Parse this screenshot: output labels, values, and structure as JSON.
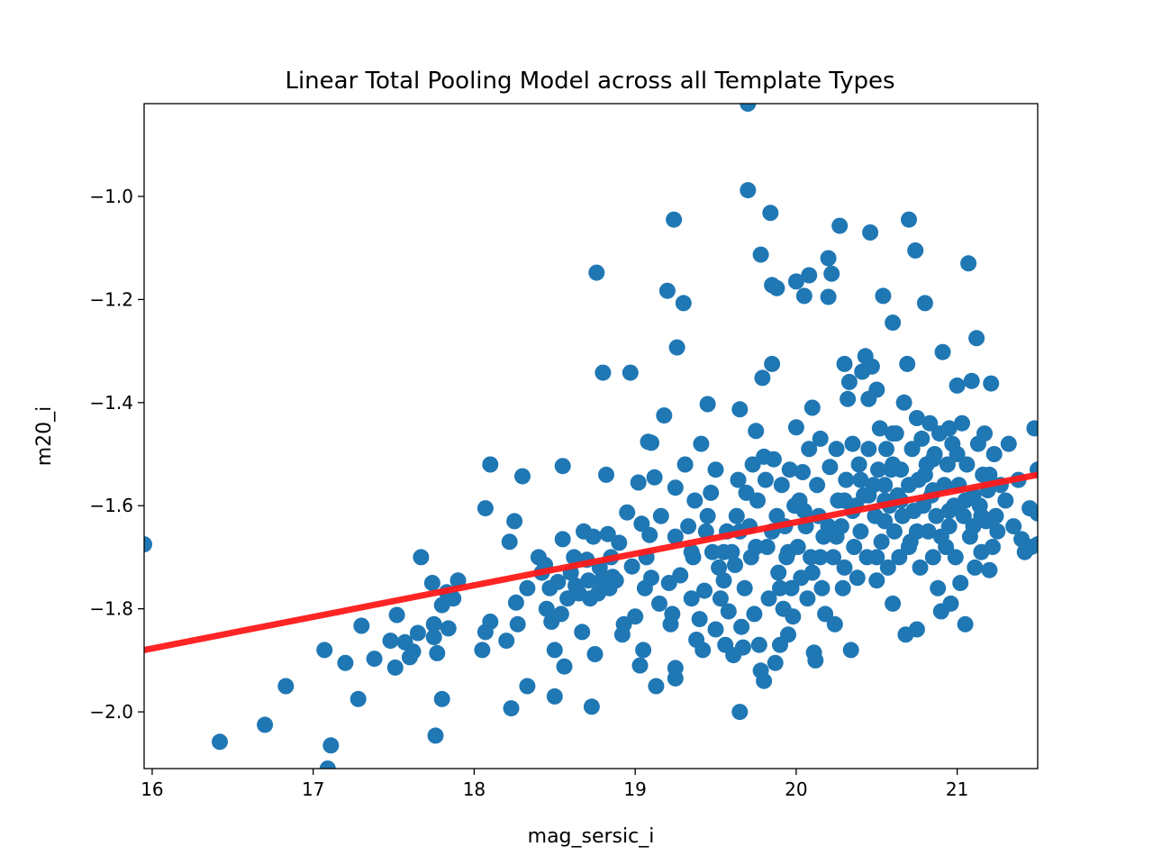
{
  "chart_data": {
    "type": "scatter",
    "title": "Linear Total Pooling Model across all Template Types",
    "xlabel": "mag_sersic_i",
    "ylabel": "m20_i",
    "xlim": [
      15.95,
      21.5
    ],
    "ylim": [
      -2.11,
      -0.82
    ],
    "xticks": [
      16,
      17,
      18,
      19,
      20,
      21
    ],
    "yticks": [
      -2.0,
      -1.8,
      -1.6,
      -1.4,
      -1.2,
      -1.0
    ],
    "xtick_labels": [
      "16",
      "17",
      "18",
      "19",
      "20",
      "21"
    ],
    "ytick_labels": [
      "−2.0",
      "−1.8",
      "−1.6",
      "−1.4",
      "−1.2",
      "−1.0"
    ],
    "grid": false,
    "point_color": "#1f77b4",
    "fit_line": {
      "color": "#ff1a1a",
      "x": [
        15.95,
        21.5
      ],
      "y": [
        -1.88,
        -1.54
      ]
    },
    "points": [
      [
        15.95,
        -1.675
      ],
      [
        16.42,
        -2.058
      ],
      [
        16.7,
        -2.025
      ],
      [
        16.83,
        -1.95
      ],
      [
        17.07,
        -1.88
      ],
      [
        17.09,
        -2.11
      ],
      [
        17.11,
        -2.065
      ],
      [
        17.2,
        -1.905
      ],
      [
        17.28,
        -1.975
      ],
      [
        17.3,
        -1.833
      ],
      [
        17.38,
        -1.897
      ],
      [
        17.48,
        -1.862
      ],
      [
        17.52,
        -1.812
      ],
      [
        17.51,
        -1.914
      ],
      [
        17.57,
        -1.865
      ],
      [
        17.6,
        -1.894
      ],
      [
        17.62,
        -1.883
      ],
      [
        17.65,
        -1.847
      ],
      [
        17.67,
        -1.7
      ],
      [
        17.74,
        -1.75
      ],
      [
        17.75,
        -1.83
      ],
      [
        17.76,
        -2.046
      ],
      [
        17.77,
        -1.886
      ],
      [
        17.8,
        -1.975
      ],
      [
        17.83,
        -1.768
      ],
      [
        17.84,
        -1.838
      ],
      [
        17.87,
        -1.78
      ],
      [
        17.9,
        -1.745
      ],
      [
        17.75,
        -1.855
      ],
      [
        17.8,
        -1.793
      ],
      [
        18.05,
        -1.88
      ],
      [
        18.07,
        -1.605
      ],
      [
        18.1,
        -1.52
      ],
      [
        18.1,
        -1.825
      ],
      [
        18.07,
        -1.845
      ],
      [
        18.2,
        -1.862
      ],
      [
        18.22,
        -1.67
      ],
      [
        18.23,
        -1.993
      ],
      [
        18.25,
        -1.63
      ],
      [
        18.26,
        -1.788
      ],
      [
        18.27,
        -1.83
      ],
      [
        18.3,
        -1.543
      ],
      [
        18.33,
        -1.95
      ],
      [
        18.33,
        -1.76
      ],
      [
        18.4,
        -1.7
      ],
      [
        18.42,
        -1.73
      ],
      [
        18.44,
        -1.715
      ],
      [
        18.45,
        -1.8
      ],
      [
        18.47,
        -1.76
      ],
      [
        18.48,
        -1.825
      ],
      [
        18.5,
        -1.88
      ],
      [
        18.5,
        -1.97
      ],
      [
        18.52,
        -1.748
      ],
      [
        18.54,
        -1.81
      ],
      [
        18.55,
        -1.523
      ],
      [
        18.55,
        -1.665
      ],
      [
        18.56,
        -1.912
      ],
      [
        18.58,
        -1.78
      ],
      [
        18.6,
        -1.73
      ],
      [
        18.62,
        -1.7
      ],
      [
        18.63,
        -1.755
      ],
      [
        18.65,
        -1.77
      ],
      [
        18.67,
        -1.845
      ],
      [
        18.68,
        -1.65
      ],
      [
        18.7,
        -1.705
      ],
      [
        18.71,
        -1.745
      ],
      [
        18.72,
        -1.78
      ],
      [
        18.73,
        -1.99
      ],
      [
        18.74,
        -1.66
      ],
      [
        18.75,
        -1.888
      ],
      [
        18.76,
        -1.148
      ],
      [
        18.77,
        -1.77
      ],
      [
        18.78,
        -1.72
      ],
      [
        18.79,
        -1.745
      ],
      [
        18.8,
        -1.342
      ],
      [
        18.82,
        -1.54
      ],
      [
        18.83,
        -1.655
      ],
      [
        18.84,
        -1.76
      ],
      [
        18.85,
        -1.7
      ],
      [
        18.86,
        -1.738
      ],
      [
        18.88,
        -1.745
      ],
      [
        18.9,
        -1.672
      ],
      [
        18.92,
        -1.85
      ],
      [
        18.93,
        -1.83
      ],
      [
        18.95,
        -1.613
      ],
      [
        18.97,
        -1.342
      ],
      [
        18.98,
        -1.718
      ],
      [
        19.0,
        -1.815
      ],
      [
        19.02,
        -1.555
      ],
      [
        19.03,
        -1.91
      ],
      [
        19.04,
        -1.635
      ],
      [
        19.05,
        -1.88
      ],
      [
        19.06,
        -1.76
      ],
      [
        19.07,
        -1.7
      ],
      [
        19.08,
        -1.476
      ],
      [
        19.09,
        -1.657
      ],
      [
        19.1,
        -1.478
      ],
      [
        19.1,
        -1.74
      ],
      [
        19.12,
        -1.545
      ],
      [
        19.13,
        -1.95
      ],
      [
        19.15,
        -1.79
      ],
      [
        19.16,
        -1.62
      ],
      [
        19.18,
        -1.425
      ],
      [
        19.2,
        -1.183
      ],
      [
        19.21,
        -1.75
      ],
      [
        19.22,
        -1.83
      ],
      [
        19.23,
        -1.81
      ],
      [
        19.24,
        -1.045
      ],
      [
        19.25,
        -1.565
      ],
      [
        19.25,
        -1.915
      ],
      [
        19.25,
        -1.935
      ],
      [
        19.26,
        -1.293
      ],
      [
        19.28,
        -1.735
      ],
      [
        19.3,
        -1.207
      ],
      [
        19.31,
        -1.52
      ],
      [
        19.33,
        -1.64
      ],
      [
        19.35,
        -1.78
      ],
      [
        19.36,
        -1.7
      ],
      [
        19.37,
        -1.59
      ],
      [
        19.38,
        -1.86
      ],
      [
        19.4,
        -1.82
      ],
      [
        19.41,
        -1.48
      ],
      [
        19.42,
        -1.88
      ],
      [
        19.43,
        -1.765
      ],
      [
        19.44,
        -1.65
      ],
      [
        19.45,
        -1.403
      ],
      [
        19.47,
        -1.575
      ],
      [
        19.48,
        -1.69
      ],
      [
        19.5,
        -1.53
      ],
      [
        19.5,
        -1.84
      ],
      [
        19.52,
        -1.72
      ],
      [
        19.53,
        -1.78
      ],
      [
        19.55,
        -1.745
      ],
      [
        19.56,
        -1.87
      ],
      [
        19.57,
        -1.65
      ],
      [
        19.58,
        -1.805
      ],
      [
        19.6,
        -1.69
      ],
      [
        19.61,
        -1.89
      ],
      [
        19.62,
        -1.715
      ],
      [
        19.63,
        -1.62
      ],
      [
        19.64,
        -1.55
      ],
      [
        19.65,
        -1.413
      ],
      [
        19.65,
        -2.0
      ],
      [
        19.66,
        -1.835
      ],
      [
        19.67,
        -1.875
      ],
      [
        19.68,
        -1.76
      ],
      [
        19.69,
        -1.575
      ],
      [
        19.7,
        -0.988
      ],
      [
        19.7,
        -0.82
      ],
      [
        19.71,
        -1.64
      ],
      [
        19.72,
        -1.7
      ],
      [
        19.73,
        -1.52
      ],
      [
        19.74,
        -1.81
      ],
      [
        19.75,
        -1.455
      ],
      [
        19.76,
        -1.59
      ],
      [
        19.77,
        -1.87
      ],
      [
        19.78,
        -1.113
      ],
      [
        19.78,
        -1.92
      ],
      [
        19.79,
        -1.352
      ],
      [
        19.8,
        -1.505
      ],
      [
        19.8,
        -1.94
      ],
      [
        19.81,
        -1.55
      ],
      [
        19.82,
        -1.68
      ],
      [
        19.83,
        -1.78
      ],
      [
        19.84,
        -1.032
      ],
      [
        19.85,
        -1.172
      ],
      [
        19.85,
        -1.325
      ],
      [
        19.86,
        -1.51
      ],
      [
        19.87,
        -1.905
      ],
      [
        19.88,
        -1.178
      ],
      [
        19.88,
        -1.62
      ],
      [
        19.89,
        -1.73
      ],
      [
        19.9,
        -1.87
      ],
      [
        19.91,
        -1.56
      ],
      [
        19.92,
        -1.8
      ],
      [
        19.93,
        -1.64
      ],
      [
        19.94,
        -1.7
      ],
      [
        19.95,
        -1.85
      ],
      [
        19.96,
        -1.53
      ],
      [
        19.97,
        -1.76
      ],
      [
        19.98,
        -1.815
      ],
      [
        19.99,
        -1.6
      ],
      [
        20.0,
        -1.165
      ],
      [
        20.0,
        -1.448
      ],
      [
        20.01,
        -1.68
      ],
      [
        20.02,
        -1.59
      ],
      [
        20.03,
        -1.74
      ],
      [
        20.04,
        -1.535
      ],
      [
        20.05,
        -1.193
      ],
      [
        20.06,
        -1.64
      ],
      [
        20.07,
        -1.78
      ],
      [
        20.08,
        -1.153
      ],
      [
        20.08,
        -1.49
      ],
      [
        20.09,
        -1.7
      ],
      [
        20.1,
        -1.41
      ],
      [
        20.11,
        -1.885
      ],
      [
        20.12,
        -1.9
      ],
      [
        20.13,
        -1.56
      ],
      [
        20.14,
        -1.62
      ],
      [
        20.15,
        -1.47
      ],
      [
        20.16,
        -1.76
      ],
      [
        20.17,
        -1.66
      ],
      [
        20.18,
        -1.81
      ],
      [
        20.2,
        -1.195
      ],
      [
        20.2,
        -1.12
      ],
      [
        20.21,
        -1.525
      ],
      [
        20.22,
        -1.15
      ],
      [
        20.23,
        -1.7
      ],
      [
        20.24,
        -1.83
      ],
      [
        20.25,
        -1.49
      ],
      [
        20.26,
        -1.59
      ],
      [
        20.27,
        -1.057
      ],
      [
        20.28,
        -1.64
      ],
      [
        20.29,
        -1.76
      ],
      [
        20.3,
        -1.325
      ],
      [
        20.31,
        -1.55
      ],
      [
        20.32,
        -1.393
      ],
      [
        20.33,
        -1.36
      ],
      [
        20.34,
        -1.88
      ],
      [
        20.35,
        -1.48
      ],
      [
        20.36,
        -1.68
      ],
      [
        20.37,
        -1.6
      ],
      [
        20.38,
        -1.74
      ],
      [
        20.39,
        -1.52
      ],
      [
        20.4,
        -1.65
      ],
      [
        20.41,
        -1.34
      ],
      [
        20.42,
        -1.58
      ],
      [
        20.43,
        -1.31
      ],
      [
        20.44,
        -1.7
      ],
      [
        20.45,
        -1.393
      ],
      [
        20.46,
        -1.07
      ],
      [
        20.47,
        -1.33
      ],
      [
        20.48,
        -1.56
      ],
      [
        20.49,
        -1.62
      ],
      [
        20.5,
        -1.375
      ],
      [
        20.5,
        -1.745
      ],
      [
        20.51,
        -1.53
      ],
      [
        20.52,
        -1.45
      ],
      [
        20.53,
        -1.67
      ],
      [
        20.54,
        -1.193
      ],
      [
        20.55,
        -1.59
      ],
      [
        20.56,
        -1.49
      ],
      [
        20.57,
        -1.72
      ],
      [
        20.58,
        -1.6
      ],
      [
        20.59,
        -1.53
      ],
      [
        20.6,
        -1.245
      ],
      [
        20.6,
        -1.79
      ],
      [
        20.61,
        -1.65
      ],
      [
        20.62,
        -1.46
      ],
      [
        20.63,
        -1.58
      ],
      [
        20.64,
        -1.7
      ],
      [
        20.65,
        -1.53
      ],
      [
        20.66,
        -1.62
      ],
      [
        20.67,
        -1.4
      ],
      [
        20.68,
        -1.85
      ],
      [
        20.69,
        -1.325
      ],
      [
        20.7,
        -1.045
      ],
      [
        20.7,
        -1.56
      ],
      [
        20.71,
        -1.67
      ],
      [
        20.72,
        -1.49
      ],
      [
        20.73,
        -1.61
      ],
      [
        20.74,
        -1.105
      ],
      [
        20.75,
        -1.84
      ],
      [
        20.76,
        -1.55
      ],
      [
        20.77,
        -1.72
      ],
      [
        20.78,
        -1.47
      ],
      [
        20.79,
        -1.6
      ],
      [
        20.8,
        -1.207
      ],
      [
        20.81,
        -1.52
      ],
      [
        20.82,
        -1.65
      ],
      [
        20.83,
        -1.44
      ],
      [
        20.84,
        -1.58
      ],
      [
        20.85,
        -1.7
      ],
      [
        20.86,
        -1.5
      ],
      [
        20.87,
        -1.62
      ],
      [
        20.88,
        -1.76
      ],
      [
        20.89,
        -1.46
      ],
      [
        20.9,
        -1.805
      ],
      [
        20.91,
        -1.302
      ],
      [
        20.92,
        -1.56
      ],
      [
        20.93,
        -1.68
      ],
      [
        20.94,
        -1.52
      ],
      [
        20.95,
        -1.64
      ],
      [
        20.96,
        -1.79
      ],
      [
        20.97,
        -1.48
      ],
      [
        20.98,
        -1.6
      ],
      [
        20.99,
        -1.7
      ],
      [
        21.0,
        -1.367
      ],
      [
        21.01,
        -1.56
      ],
      [
        21.02,
        -1.75
      ],
      [
        21.03,
        -1.44
      ],
      [
        21.04,
        -1.62
      ],
      [
        21.05,
        -1.83
      ],
      [
        21.06,
        -1.52
      ],
      [
        21.07,
        -1.13
      ],
      [
        21.08,
        -1.66
      ],
      [
        21.09,
        -1.358
      ],
      [
        21.1,
        -1.58
      ],
      [
        21.11,
        -1.72
      ],
      [
        21.12,
        -1.275
      ],
      [
        21.13,
        -1.48
      ],
      [
        21.14,
        -1.6
      ],
      [
        21.15,
        -1.69
      ],
      [
        21.16,
        -1.54
      ],
      [
        21.17,
        -1.46
      ],
      [
        21.18,
        -1.63
      ],
      [
        21.19,
        -1.57
      ],
      [
        21.2,
        -1.725
      ],
      [
        21.21,
        -1.363
      ],
      [
        21.22,
        -1.68
      ],
      [
        21.23,
        -1.5
      ],
      [
        21.24,
        -1.62
      ],
      [
        21.25,
        -1.65
      ],
      [
        21.27,
        -1.56
      ],
      [
        21.3,
        -1.59
      ],
      [
        21.32,
        -1.48
      ],
      [
        21.35,
        -1.64
      ],
      [
        21.38,
        -1.55
      ],
      [
        21.4,
        -1.665
      ],
      [
        21.42,
        -1.69
      ],
      [
        21.45,
        -1.605
      ],
      [
        21.46,
        -1.68
      ],
      [
        21.48,
        -1.45
      ],
      [
        21.5,
        -1.53
      ],
      [
        21.5,
        -1.615
      ],
      [
        21.5,
        -1.675
      ],
      [
        19.95,
        -1.69
      ],
      [
        20.05,
        -1.61
      ],
      [
        20.15,
        -1.7
      ],
      [
        20.25,
        -1.66
      ],
      [
        20.35,
        -1.61
      ],
      [
        20.45,
        -1.58
      ],
      [
        20.55,
        -1.63
      ],
      [
        20.65,
        -1.59
      ],
      [
        20.75,
        -1.65
      ],
      [
        20.85,
        -1.57
      ],
      [
        20.95,
        -1.61
      ],
      [
        21.05,
        -1.59
      ],
      [
        21.15,
        -1.62
      ],
      [
        19.85,
        -1.65
      ],
      [
        19.75,
        -1.68
      ],
      [
        19.65,
        -1.65
      ],
      [
        19.55,
        -1.69
      ],
      [
        19.45,
        -1.62
      ],
      [
        19.35,
        -1.69
      ],
      [
        19.25,
        -1.66
      ],
      [
        20.4,
        -1.55
      ],
      [
        20.6,
        -1.52
      ],
      [
        20.8,
        -1.54
      ],
      [
        21.0,
        -1.5
      ],
      [
        20.3,
        -1.72
      ],
      [
        20.5,
        -1.7
      ],
      [
        20.7,
        -1.68
      ],
      [
        20.9,
        -1.66
      ],
      [
        21.1,
        -1.64
      ],
      [
        20.2,
        -1.64
      ],
      [
        19.9,
        -1.76
      ],
      [
        20.1,
        -1.73
      ],
      [
        20.6,
        -1.46
      ],
      [
        20.75,
        -1.43
      ],
      [
        20.95,
        -1.45
      ],
      [
        21.2,
        -1.54
      ],
      [
        20.45,
        -1.49
      ],
      [
        20.3,
        -1.59
      ],
      [
        20.55,
        -1.56
      ],
      [
        20.85,
        -1.51
      ]
    ]
  }
}
